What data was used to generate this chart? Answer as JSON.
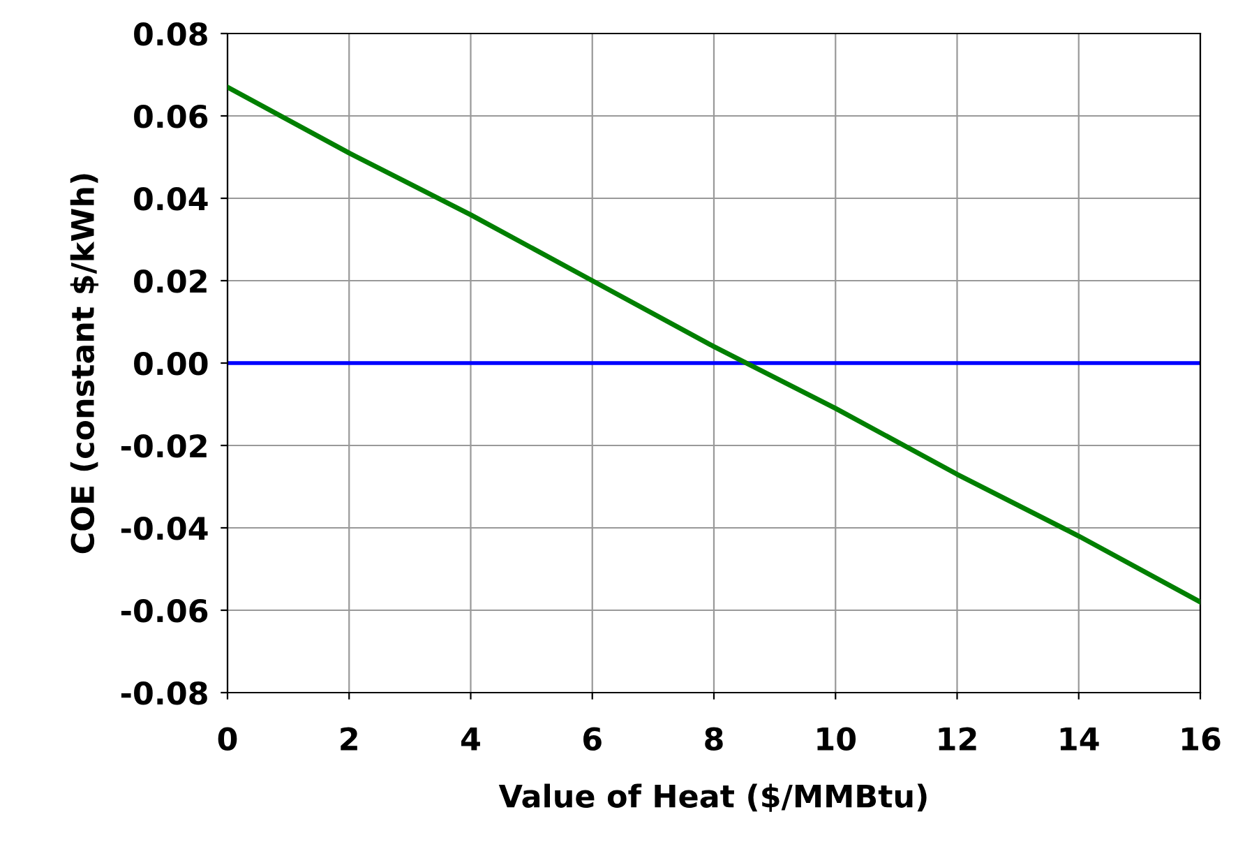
{
  "chart_data": {
    "type": "line",
    "xlabel": "Value of Heat ($/MMBtu)",
    "ylabel": "COE (constant $/kWh)",
    "x": [
      0,
      2,
      4,
      6,
      8,
      10,
      12,
      14,
      16
    ],
    "series": [
      {
        "color": "#007f00",
        "values": [
          0.067,
          0.051,
          0.036,
          0.02,
          0.004,
          -0.011,
          -0.027,
          -0.042,
          -0.058
        ]
      }
    ],
    "ref_lines": [
      {
        "axis": "y",
        "value": 0,
        "color": "#0000ff"
      }
    ],
    "xlim": [
      0,
      16
    ],
    "xticks": [
      0,
      2,
      4,
      6,
      8,
      10,
      12,
      14,
      16
    ],
    "ylim": [
      -0.08,
      0.08
    ],
    "yticks": [
      {
        "value": -0.08,
        "label": "-0.08"
      },
      {
        "value": -0.06,
        "label": "-0.06"
      },
      {
        "value": -0.04,
        "label": "-0.04"
      },
      {
        "value": -0.02,
        "label": "-0.02"
      },
      {
        "value": 0,
        "label": "0.00"
      },
      {
        "value": 0.02,
        "label": "0.02"
      },
      {
        "value": 0.04,
        "label": "0.04"
      },
      {
        "value": 0.06,
        "label": "0.06"
      },
      {
        "value": 0.08,
        "label": "0.08"
      }
    ],
    "grid": true,
    "legend": false,
    "marker": "none",
    "line_style": "solid"
  }
}
